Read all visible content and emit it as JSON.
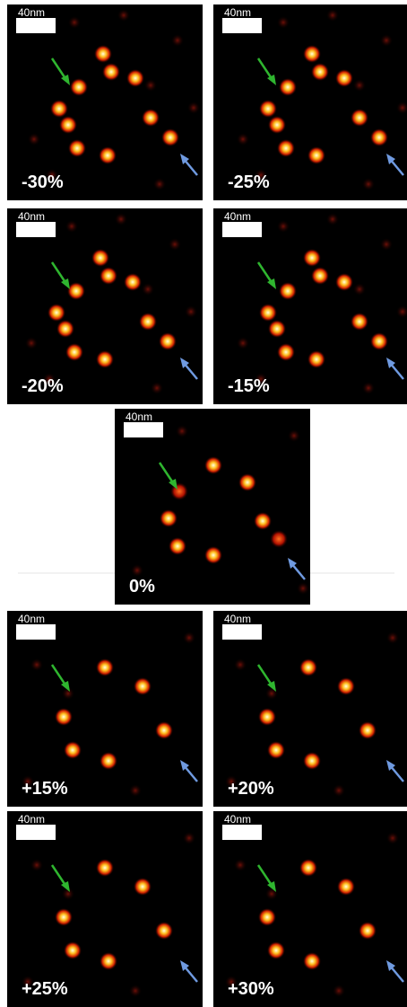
{
  "panels": [
    {
      "scale_bar": "40nm",
      "label": "-30%"
    },
    {
      "scale_bar": "40nm",
      "label": "-25%"
    },
    {
      "scale_bar": "40nm",
      "label": "-20%"
    },
    {
      "scale_bar": "40nm",
      "label": "-15%"
    },
    {
      "scale_bar": "40nm",
      "label": "0%"
    },
    {
      "scale_bar": "40nm",
      "label": "+15%"
    },
    {
      "scale_bar": "40nm",
      "label": "+20%"
    },
    {
      "scale_bar": "40nm",
      "label": "+25%"
    },
    {
      "scale_bar": "40nm",
      "label": "+30%"
    }
  ]
}
